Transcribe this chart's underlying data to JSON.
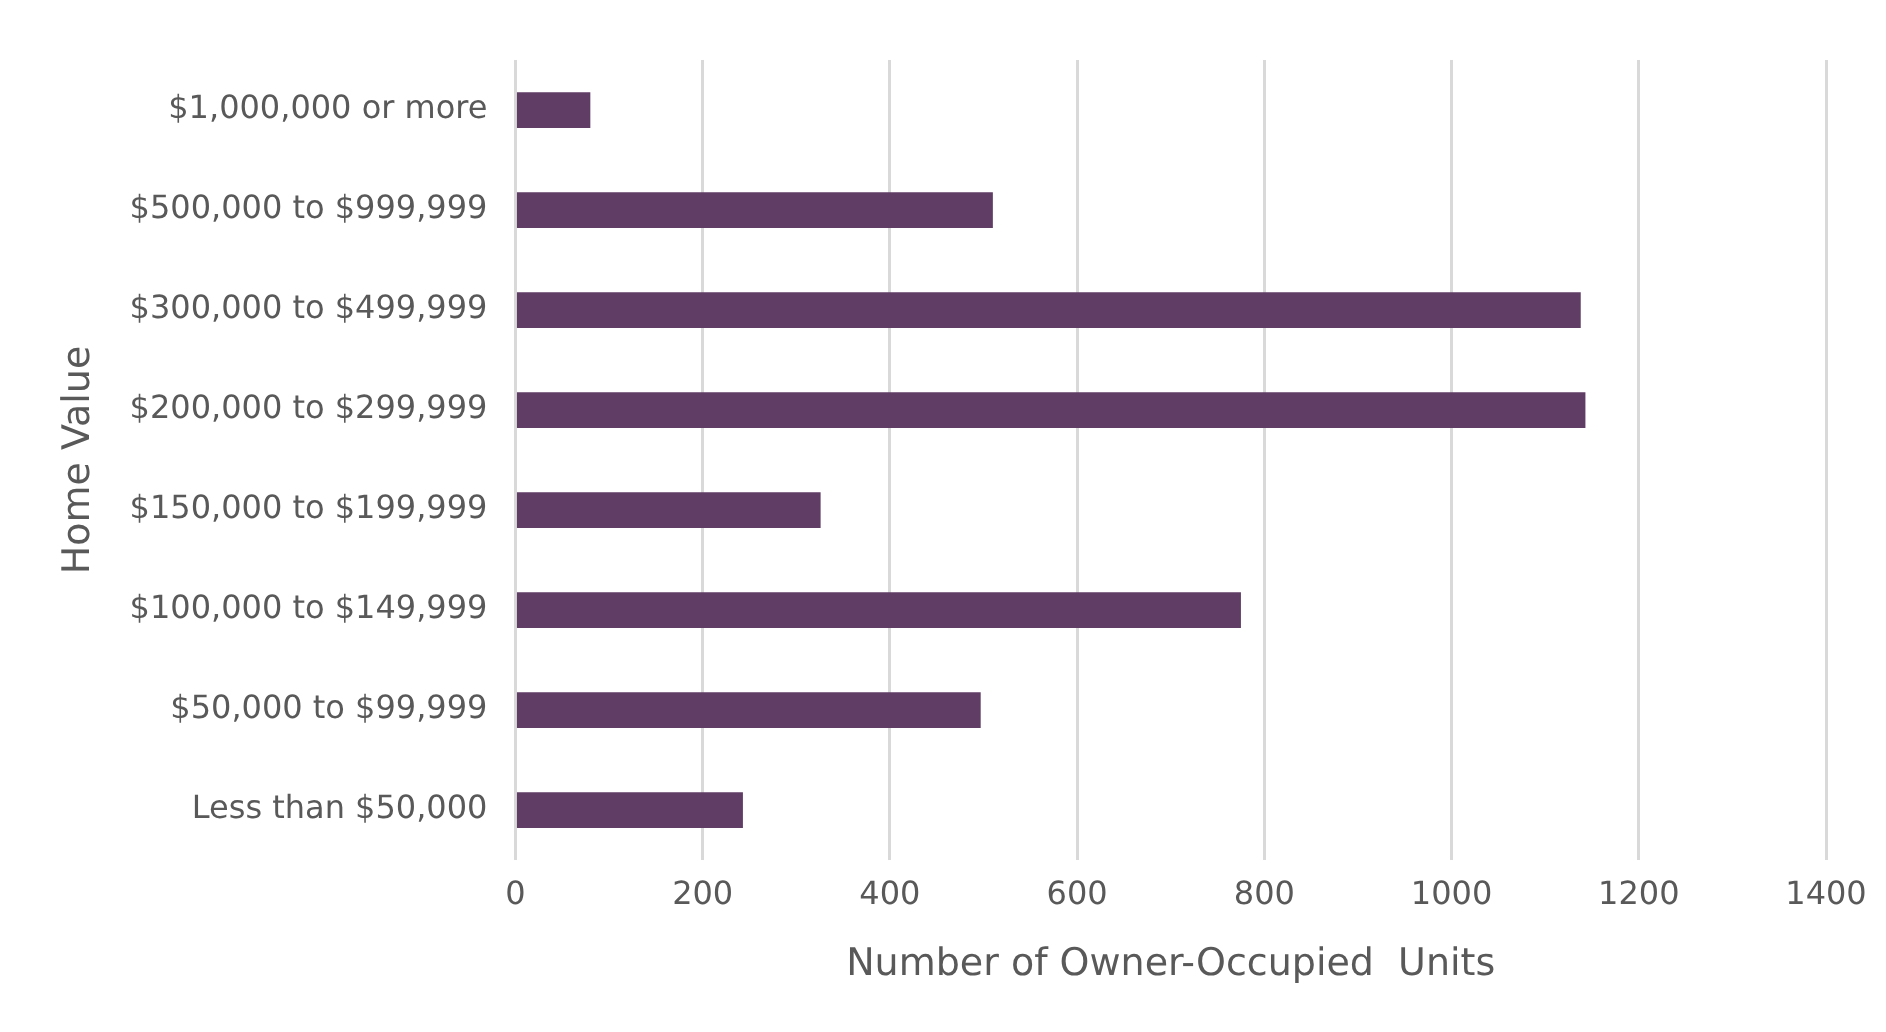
{
  "chart_data": {
    "type": "bar",
    "orientation": "horizontal",
    "xlabel": "Number of Owner-Occupied  Units",
    "ylabel": "Home Value",
    "categories": [
      "$1,000,000 or more",
      "$500,000 to $999,999",
      "$300,000 to $499,999",
      "$200,000 to $299,999",
      "$150,000 to $199,999",
      "$100,000 to $149,999",
      "$50,000 to $99,999",
      "Less than $50,000"
    ],
    "values": [
      80,
      510,
      1138,
      1143,
      326,
      775,
      497,
      243
    ],
    "color": "#5f3d64",
    "xlim": [
      0,
      1400
    ],
    "xticks": [
      0,
      200,
      400,
      600,
      800,
      1000,
      1200,
      1400
    ],
    "grid": "x"
  }
}
